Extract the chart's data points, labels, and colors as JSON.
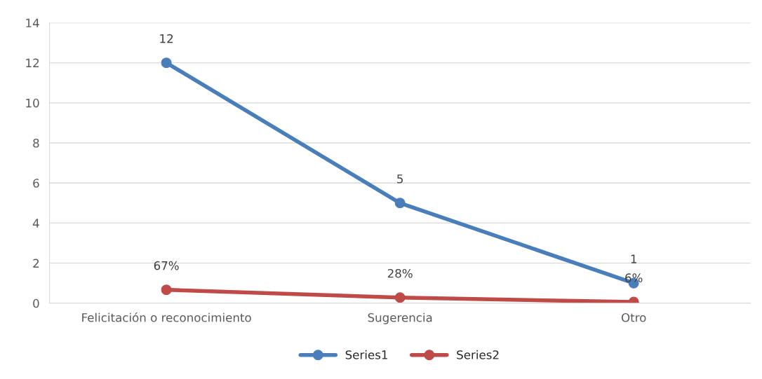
{
  "chart_data": {
    "type": "line",
    "categories": [
      "Felicitación o reconocimiento",
      "Sugerencia",
      "Otro"
    ],
    "series": [
      {
        "name": "Series1",
        "color": "#4a7ebb",
        "values": [
          12,
          5,
          1
        ],
        "value_labels": [
          "12",
          "5",
          "1"
        ]
      },
      {
        "name": "Series2",
        "color": "#be4b48",
        "values": [
          0.67,
          0.28,
          0.06
        ],
        "value_labels": [
          "67%",
          "28%",
          "6%"
        ]
      }
    ],
    "ylim": [
      0,
      14
    ],
    "yticks": [
      0,
      2,
      4,
      6,
      8,
      10,
      12,
      14
    ],
    "grid": "y",
    "legend": "bottom",
    "marker": "circle",
    "line_style": "solid"
  }
}
